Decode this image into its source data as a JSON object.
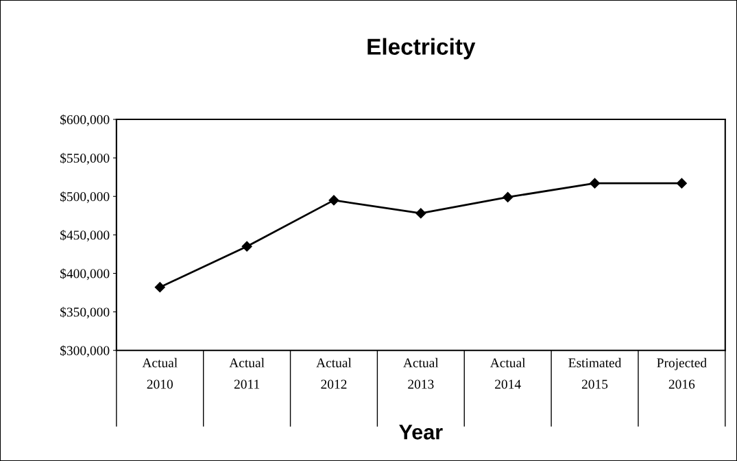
{
  "chart_data": {
    "type": "line",
    "title": "Electricity",
    "xlabel": "Year",
    "categories": [
      "Actual\n2010",
      "Actual\n2011",
      "Actual\n2012",
      "Actual\n2013",
      "Actual\n2014",
      "Estimated\n2015",
      "Projected\n2016"
    ],
    "series": [
      {
        "color": "#000000",
        "values": [
          382000,
          435000,
          495000,
          478000,
          499000,
          517000,
          517000
        ]
      }
    ],
    "ylim": [
      300000,
      600000
    ],
    "yticks": [
      {
        "value": 300000,
        "label": "$300,000"
      },
      {
        "value": 350000,
        "label": "$350,000"
      },
      {
        "value": 400000,
        "label": "$400,000"
      },
      {
        "value": 450000,
        "label": "$450,000"
      },
      {
        "value": 500000,
        "label": "$500,000"
      },
      {
        "value": 550000,
        "label": "$550,000"
      },
      {
        "value": 600000,
        "label": "$600,000"
      }
    ],
    "grid": false,
    "legend": false,
    "marker": "diamond",
    "line_style": "solid"
  }
}
